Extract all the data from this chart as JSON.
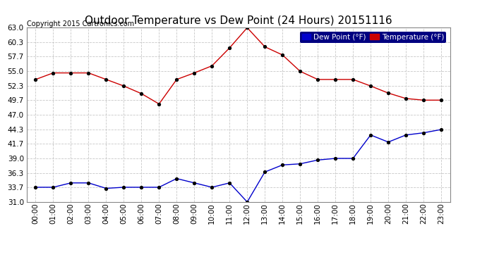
{
  "title": "Outdoor Temperature vs Dew Point (24 Hours) 20151116",
  "copyright_text": "Copyright 2015 Cartronics.com",
  "background_color": "#ffffff",
  "plot_bg_color": "#ffffff",
  "grid_color": "#c8c8c8",
  "hours": [
    0,
    1,
    2,
    3,
    4,
    5,
    6,
    7,
    8,
    9,
    10,
    11,
    12,
    13,
    14,
    15,
    16,
    17,
    18,
    19,
    20,
    21,
    22,
    23
  ],
  "temperature": [
    53.5,
    54.7,
    54.7,
    54.7,
    53.5,
    52.3,
    50.9,
    49.0,
    53.5,
    54.7,
    56.0,
    59.3,
    63.0,
    59.5,
    58.0,
    55.0,
    53.5,
    53.5,
    53.5,
    52.3,
    51.0,
    50.0,
    49.7,
    49.7
  ],
  "dew_point": [
    33.7,
    33.7,
    34.5,
    34.5,
    33.5,
    33.7,
    33.7,
    33.7,
    35.3,
    34.5,
    33.7,
    34.5,
    31.0,
    36.5,
    37.8,
    38.0,
    38.7,
    39.0,
    39.0,
    43.3,
    42.0,
    43.3,
    43.7,
    44.3
  ],
  "temp_color": "#cc0000",
  "dew_color": "#0000cc",
  "marker_color": "#000000",
  "yticks": [
    31.0,
    33.7,
    36.3,
    39.0,
    41.7,
    44.3,
    47.0,
    49.7,
    52.3,
    55.0,
    57.7,
    60.3,
    63.0
  ],
  "ylim": [
    31.0,
    63.0
  ],
  "title_fontsize": 11,
  "tick_fontsize": 7.5,
  "copyright_fontsize": 7,
  "legend_dew_label": "Dew Point (°F)",
  "legend_temp_label": "Temperature (°F)",
  "legend_bg_color": "#000080",
  "legend_fontsize": 7.5
}
